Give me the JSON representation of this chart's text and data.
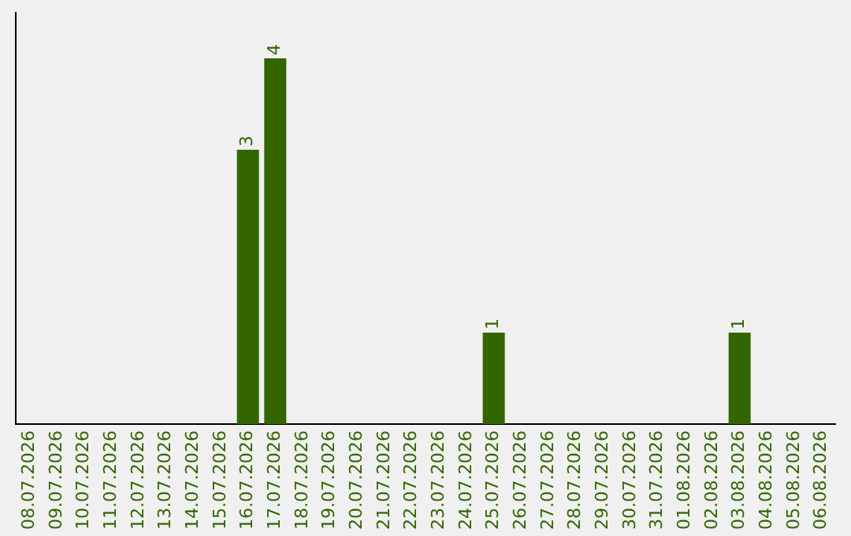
{
  "chart_data": {
    "type": "bar",
    "categories": [
      "08.07.2026",
      "09.07.2026",
      "10.07.2026",
      "11.07.2026",
      "12.07.2026",
      "13.07.2026",
      "14.07.2026",
      "15.07.2026",
      "16.07.2026",
      "17.07.2026",
      "18.07.2026",
      "19.07.2026",
      "20.07.2026",
      "21.07.2026",
      "22.07.2026",
      "23.07.2026",
      "24.07.2026",
      "25.07.2026",
      "26.07.2026",
      "27.07.2026",
      "28.07.2026",
      "29.07.2026",
      "30.07.2026",
      "31.07.2026",
      "01.08.2026",
      "02.08.2026",
      "03.08.2026",
      "04.08.2026",
      "05.08.2026",
      "06.08.2026"
    ],
    "values": [
      0,
      0,
      0,
      0,
      0,
      0,
      0,
      0,
      3,
      4,
      0,
      0,
      0,
      0,
      0,
      0,
      0,
      1,
      0,
      0,
      0,
      0,
      0,
      0,
      0,
      0,
      1,
      0,
      0,
      0
    ],
    "value_labels": [
      null,
      null,
      null,
      null,
      null,
      null,
      null,
      null,
      "3",
      "4",
      null,
      null,
      null,
      null,
      null,
      null,
      null,
      "1",
      null,
      null,
      null,
      null,
      null,
      null,
      null,
      null,
      "1",
      null,
      null,
      null
    ],
    "color": "#336600",
    "tick_labels": "x",
    "grid": false,
    "legend": false
  }
}
